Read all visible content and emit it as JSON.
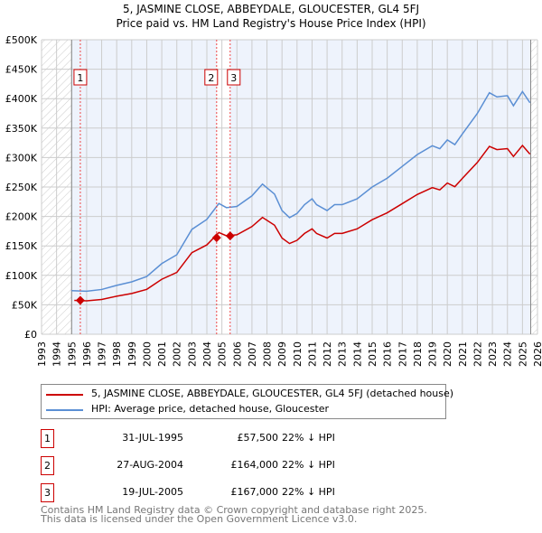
{
  "chart_data": {
    "type": "line",
    "title": "5, JASMINE CLOSE, ABBEYDALE, GLOUCESTER, GL4 5FJ",
    "subtitle": "Price paid vs. HM Land Registry's House Price Index (HPI)",
    "xlim": [
      1993,
      2026
    ],
    "ylim": [
      0,
      500000
    ],
    "x_ticks": [
      "1993",
      "1994",
      "1995",
      "1996",
      "1997",
      "1998",
      "1999",
      "2000",
      "2001",
      "2002",
      "2003",
      "2004",
      "2005",
      "2006",
      "2007",
      "2008",
      "2009",
      "2010",
      "2011",
      "2012",
      "2013",
      "2014",
      "2015",
      "2016",
      "2017",
      "2018",
      "2019",
      "2020",
      "2021",
      "2022",
      "2023",
      "2024",
      "2025",
      "2026"
    ],
    "y_ticks": [
      "£0",
      "£50K",
      "£100K",
      "£150K",
      "£200K",
      "£250K",
      "£300K",
      "£350K",
      "£400K",
      "£450K",
      "£500K"
    ],
    "series": [
      {
        "name": "HPI: Average price, detached house, Gloucester",
        "color": "#5b8fd4",
        "x": [
          1995,
          1996,
          1997,
          1998,
          1999,
          2000,
          2001,
          2002,
          2003,
          2004,
          2004.8,
          2005.3,
          2006,
          2007,
          2007.7,
          2008.5,
          2009,
          2009.5,
          2010,
          2010.5,
          2011,
          2011.3,
          2012,
          2012.5,
          2013,
          2014,
          2015,
          2016,
          2017,
          2018,
          2019,
          2019.5,
          2020,
          2020.5,
          2021,
          2022,
          2022.8,
          2023.3,
          2024,
          2024.4,
          2025,
          2025.5
        ],
        "y": [
          74000,
          73000,
          76000,
          83000,
          89000,
          98000,
          120000,
          135000,
          178000,
          195000,
          222000,
          215000,
          217000,
          235000,
          255000,
          238000,
          210000,
          198000,
          205000,
          220000,
          230000,
          220000,
          210000,
          220000,
          220000,
          230000,
          250000,
          265000,
          285000,
          305000,
          320000,
          315000,
          330000,
          322000,
          340000,
          375000,
          410000,
          403000,
          405000,
          388000,
          412000,
          393000
        ]
      },
      {
        "name": "5, JASMINE CLOSE, ABBEYDALE, GLOUCESTER, GL4 5FJ (detached house)",
        "color": "#cc0000",
        "hpi_ratio": 0.778
      }
    ],
    "sales": [
      {
        "n": "1",
        "x": 1995.58,
        "y": 57500,
        "date": "31-JUL-1995",
        "price": "£57,500",
        "hpi": "22% ↓ HPI"
      },
      {
        "n": "2",
        "x": 2004.65,
        "y": 164000,
        "date": "27-AUG-2004",
        "price": "£164,000",
        "hpi": "22% ↓ HPI"
      },
      {
        "n": "3",
        "x": 2005.55,
        "y": 167000,
        "date": "19-JUL-2005",
        "price": "£167,000",
        "hpi": "22% ↓ HPI"
      }
    ]
  },
  "footer": {
    "line1": "Contains HM Land Registry data © Crown copyright and database right 2025.",
    "line2": "This data is licensed under the Open Government Licence v3.0."
  }
}
